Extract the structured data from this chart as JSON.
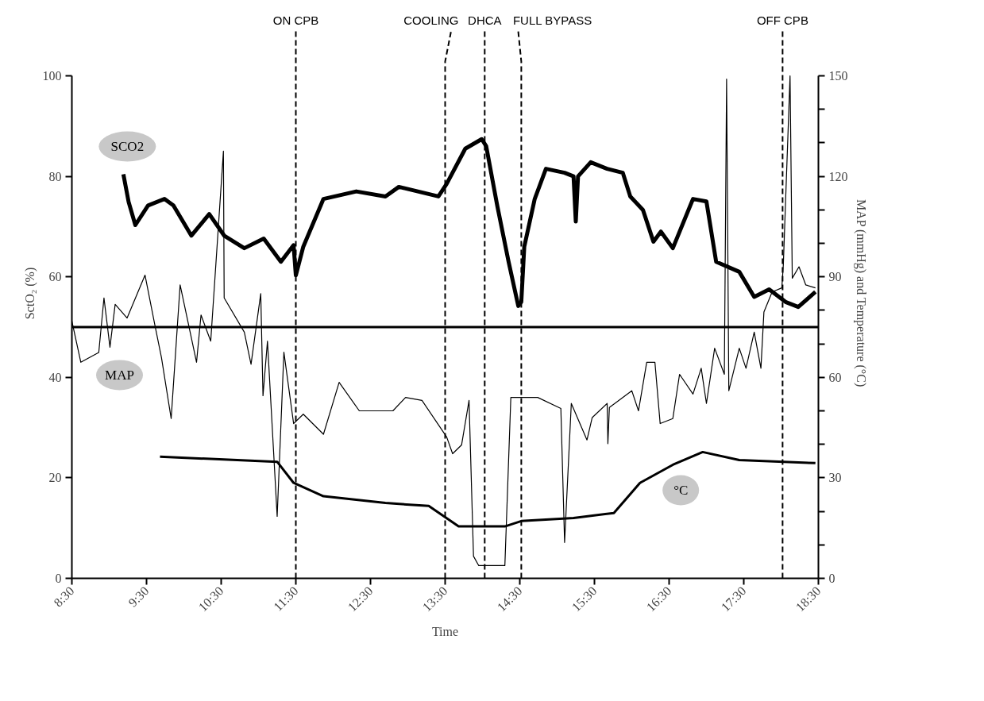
{
  "chart_data": {
    "type": "line",
    "xlabel": "Time",
    "ylabel": "SctO₂ (%)",
    "y2label": "MAP (mmHg) and Temperature (°C)",
    "xlim": [
      8.5,
      18.5
    ],
    "xticks": [
      {
        "value": 8.5,
        "label": "8:30"
      },
      {
        "value": 9.5,
        "label": "9:30"
      },
      {
        "value": 10.5,
        "label": "10:30"
      },
      {
        "value": 11.5,
        "label": "11:30"
      },
      {
        "value": 12.5,
        "label": "12:30"
      },
      {
        "value": 13.5,
        "label": "13:30"
      },
      {
        "value": 14.5,
        "label": "14:30"
      },
      {
        "value": 15.5,
        "label": "15:30"
      },
      {
        "value": 16.5,
        "label": "16:30"
      },
      {
        "value": 17.5,
        "label": "17:30"
      },
      {
        "value": 18.5,
        "label": "18:30"
      }
    ],
    "ylim": [
      0,
      100
    ],
    "yticks": [
      0,
      20,
      40,
      60,
      80,
      100
    ],
    "y2lim": [
      0,
      150
    ],
    "y2ticks": [
      0,
      {
        "value": 10,
        "label": null
      },
      {
        "value": 20,
        "label": null
      },
      30,
      {
        "value": 40,
        "label": null
      },
      {
        "value": 50,
        "label": null
      },
      60,
      {
        "value": 70,
        "label": null
      },
      {
        "value": 80,
        "label": null
      },
      90,
      {
        "value": 100,
        "label": null
      },
      {
        "value": 110,
        "label": null
      },
      120,
      {
        "value": 130,
        "label": null
      },
      {
        "value": 140,
        "label": null
      },
      150
    ],
    "series": [
      {
        "name": "SCO2",
        "color": "#000000",
        "x": [
          9.19,
          9.26,
          9.35,
          9.52,
          9.74,
          9.86,
          10.1,
          10.34,
          10.54,
          10.81,
          11.07,
          11.3,
          11.47,
          11.5,
          11.6,
          11.87,
          12.31,
          12.7,
          12.88,
          13.41,
          13.52,
          13.77,
          13.99,
          14.05,
          14.2,
          14.35,
          14.48,
          14.52,
          14.56,
          14.7,
          14.85,
          15.1,
          15.22,
          15.25,
          15.28,
          15.45,
          15.67,
          15.88,
          15.98,
          16.15,
          16.29,
          16.39,
          16.55,
          16.82,
          17.0,
          17.13,
          17.44,
          17.64,
          17.84,
          18.06,
          18.23,
          18.46
        ],
        "values": [
          80.4,
          74.9,
          70.3,
          74.2,
          75.5,
          74.2,
          68.2,
          72.5,
          68.2,
          65.7,
          67.6,
          63,
          66.3,
          60.3,
          66,
          75.5,
          77,
          76,
          77.9,
          76,
          78.5,
          85.5,
          87.4,
          86,
          74,
          63,
          54.2,
          55,
          66,
          75.5,
          81.5,
          80.7,
          80,
          71,
          80,
          82.8,
          81.5,
          80.7,
          76,
          73.3,
          67,
          69,
          65.7,
          75.5,
          75,
          63,
          61,
          56,
          57.5,
          55,
          54,
          57
        ]
      },
      {
        "name": "MAP",
        "color": "#000000",
        "axis": "y2",
        "x": [
          8.5,
          8.62,
          8.86,
          8.93,
          9.01,
          9.08,
          9.24,
          9.48,
          9.61,
          9.7,
          9.83,
          9.95,
          10.17,
          10.23,
          10.36,
          10.53,
          10.54,
          10.81,
          10.9,
          11.03,
          11.06,
          11.12,
          11.25,
          11.34,
          11.47,
          11.6,
          11.87,
          12.08,
          12.35,
          12.8,
          12.97,
          13.19,
          13.52,
          13.6,
          13.72,
          13.82,
          13.88,
          13.95,
          14.3,
          14.38,
          14.74,
          15.05,
          15.1,
          15.19,
          15.4,
          15.47,
          15.67,
          15.68,
          15.7,
          16.0,
          16.09,
          16.2,
          16.31,
          16.38,
          16.55,
          16.64,
          16.82,
          16.93,
          17.0,
          17.11,
          17.24,
          17.27,
          17.3,
          17.44,
          17.53,
          17.64,
          17.73,
          17.77,
          17.88,
          18.01,
          18.03,
          18.12,
          18.15,
          18.24,
          18.33,
          18.46
        ],
        "values": [
          76.8,
          64.5,
          67.4,
          83.7,
          69,
          81.8,
          77.7,
          90.5,
          75.8,
          65.9,
          47.7,
          87.6,
          64.5,
          78.6,
          70.8,
          127.5,
          83.7,
          73.5,
          63.9,
          85,
          54.5,
          70.8,
          18.5,
          67.5,
          46.2,
          49,
          43,
          58.5,
          50,
          50,
          54,
          53.1,
          42.2,
          37.2,
          39.8,
          53.1,
          6.6,
          3.8,
          3.8,
          54,
          54,
          50.7,
          10.7,
          52.2,
          41.3,
          48,
          52.2,
          40.2,
          51,
          56,
          50,
          64.5,
          64.5,
          46.2,
          47.7,
          60.9,
          55,
          62.7,
          52.2,
          68.7,
          60.9,
          149,
          56,
          68.7,
          62.7,
          73.5,
          62.7,
          79.5,
          85.5,
          86.7,
          93.6,
          150,
          89.6,
          93,
          87.6,
          86.7
        ]
      },
      {
        "name": "°C",
        "color": "#000000",
        "axis": "y2",
        "x": [
          9.68,
          11.25,
          11.47,
          11.87,
          12.7,
          13.28,
          13.68,
          14.3,
          14.52,
          15.22,
          15.76,
          16.11,
          16.55,
          16.95,
          17.44,
          18.46
        ],
        "values": [
          36.3,
          34.8,
          28.5,
          24.5,
          22.5,
          21.6,
          15.5,
          15.5,
          17.1,
          18,
          19.5,
          28.5,
          33.9,
          37.7,
          35.3,
          34.4
        ]
      }
    ],
    "ref_lines": [
      {
        "axis": "x",
        "value": 11.5,
        "label": "ON CPB",
        "line_style": "dashed",
        "color": "#000000"
      },
      {
        "axis": "x",
        "value": 13.5,
        "label": "COOLING",
        "line_style": "dashed",
        "color": "#000000"
      },
      {
        "axis": "x",
        "value": 14.03,
        "label": "DHCA",
        "line_style": "dashed",
        "color": "#000000"
      },
      {
        "axis": "x",
        "value": 14.52,
        "label": "FULL BYPASS",
        "line_style": "dashed",
        "color": "#000000"
      },
      {
        "axis": "x",
        "value": 18.02,
        "label": "OFF CPB",
        "line_style": "dashed",
        "color": "#000000"
      },
      {
        "axis": "y",
        "value": 50,
        "label": null,
        "line_style": "solid",
        "color": "#000000"
      }
    ]
  }
}
